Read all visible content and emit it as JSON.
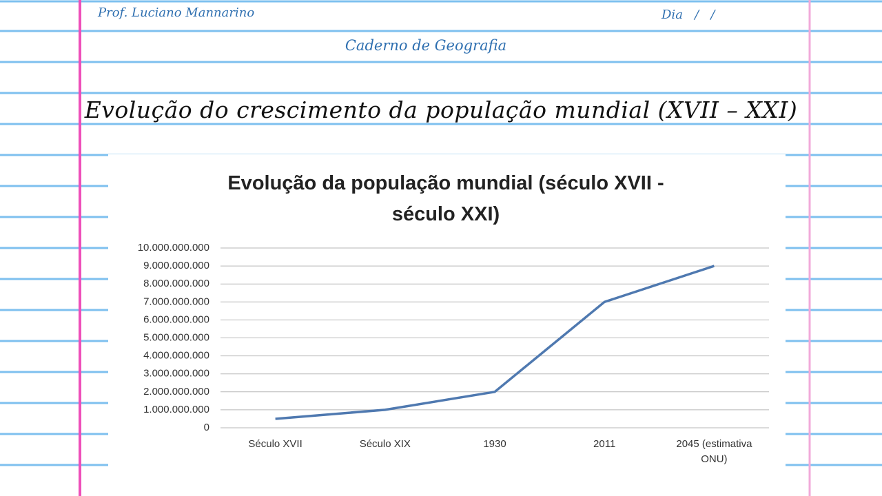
{
  "header": {
    "author": "Prof. Luciano Mannarino",
    "date": "Dia   /   /",
    "subject": "Caderno de Geografia",
    "title": "Evolução do crescimento da população mundial (XVII – XXI)"
  },
  "chart_data": {
    "type": "line",
    "title": "Evolução da população mundial (século XVII - século XXI)",
    "categories": [
      "Século XVII",
      "Século XIX",
      "1930",
      "2011",
      "2045 (estimativa ONU)"
    ],
    "values": [
      500000000,
      1000000000,
      2000000000,
      7000000000,
      9000000000
    ],
    "color": "#4f79b0",
    "ylim": [
      0,
      10000000000
    ],
    "yticks": [
      0,
      {
        "value": 1000000000,
        "label": "1.000.000.000"
      },
      {
        "value": 2000000000,
        "label": "2.000.000.000"
      },
      {
        "value": 3000000000,
        "label": "3.000.000.000"
      },
      {
        "value": 4000000000,
        "label": "4.000.000.000"
      },
      {
        "value": 5000000000,
        "label": "5.000.000.000"
      },
      {
        "value": 6000000000,
        "label": "6.000.000.000"
      },
      {
        "value": 7000000000,
        "label": "7.000.000.000"
      },
      {
        "value": 8000000000,
        "label": "8.000.000.000"
      },
      {
        "value": 9000000000,
        "label": "9.000.000.000"
      },
      {
        "value": 10000000000,
        "label": "10.000.000.000"
      }
    ],
    "grid": true
  }
}
